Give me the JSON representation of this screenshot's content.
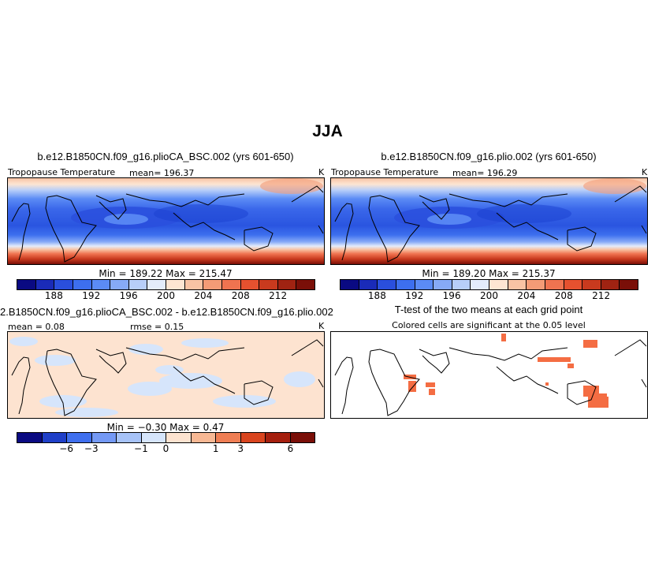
{
  "figure": {
    "title": "JJA"
  },
  "panels": {
    "top_left": {
      "title": "b.e12.B1850CN.f09_g16.plioCA_BSC.002 (yrs 601-650)",
      "variable": "Tropopause Temperature",
      "stat": "mean=  196.37",
      "units": "K",
      "minmax": "Min =  189.22  Max =  215.47"
    },
    "top_right": {
      "title": "b.e12.B1850CN.f09_g16.plio.002 (yrs 601-650)",
      "variable": "Tropopause Temperature",
      "stat": "mean=  196.29",
      "units": "K",
      "minmax": "Min =  189.20  Max =  215.37"
    },
    "bottom_left": {
      "title": "2.B1850CN.f09_g16.plioCA_BSC.002 - b.e12.B1850CN.f09_g16.plio.002",
      "mean": "mean =   0.08",
      "rmse": "rmse =    0.15",
      "units": "K",
      "minmax": "Min =  −0.30  Max =   0.47"
    },
    "bottom_right": {
      "title": "T-test of the two means at each grid point",
      "subtitle": "Colored cells are significant at the 0.05 level"
    }
  },
  "colorbars": {
    "absolute": {
      "colors": [
        "#0a0a82",
        "#1a2bb8",
        "#2a4fdd",
        "#3d6fee",
        "#5b8bf5",
        "#86aaf7",
        "#b7cef9",
        "#e3ecfb",
        "#fde5d2",
        "#f8c3a4",
        "#f49b76",
        "#ef7350",
        "#e5512f",
        "#c93a1e",
        "#a02312",
        "#7a0f08"
      ],
      "ticks": [
        "188",
        "192",
        "196",
        "200",
        "204",
        "208",
        "212"
      ]
    },
    "difference": {
      "colors": [
        "#0a0a82",
        "#1f3fc8",
        "#3f6fee",
        "#7499f5",
        "#a7c3f8",
        "#d6e5fb",
        "#fde3d0",
        "#f7b894",
        "#ef7e54",
        "#d9451f",
        "#a51f0e",
        "#7a0f08"
      ],
      "ticks": [
        "−6",
        "−3",
        "−1",
        "0",
        "1",
        "3",
        "6"
      ]
    }
  }
}
